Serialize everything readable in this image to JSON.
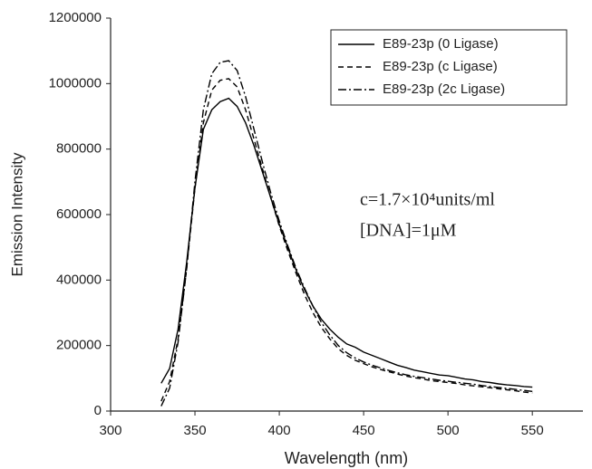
{
  "chart_data": {
    "type": "line",
    "xlabel": "Wavelength (nm)",
    "ylabel": "Emission Intensity",
    "x": [
      330,
      335,
      340,
      345,
      350,
      355,
      360,
      365,
      370,
      375,
      380,
      385,
      390,
      395,
      400,
      405,
      410,
      415,
      420,
      425,
      430,
      435,
      440,
      445,
      450,
      455,
      460,
      465,
      470,
      475,
      480,
      485,
      490,
      495,
      500,
      505,
      510,
      515,
      520,
      525,
      530,
      535,
      540,
      545,
      550
    ],
    "series": [
      {
        "name": "E89-23p (0 Ligase)",
        "color": "#000000",
        "dash": "solid",
        "values": [
          85000,
          130000,
          250000,
          450000,
          680000,
          860000,
          920000,
          945000,
          955000,
          930000,
          880000,
          810000,
          730000,
          650000,
          570000,
          500000,
          430000,
          370000,
          320000,
          280000,
          250000,
          225000,
          205000,
          195000,
          180000,
          170000,
          160000,
          150000,
          140000,
          133000,
          125000,
          120000,
          115000,
          110000,
          108000,
          103000,
          98000,
          95000,
          90000,
          87000,
          83000,
          80000,
          78000,
          75000,
          73000
        ]
      },
      {
        "name": "E89-23p (c Ligase)",
        "color": "#000000",
        "dash": "dashed",
        "values": [
          30000,
          90000,
          220000,
          430000,
          680000,
          880000,
          980000,
          1010000,
          1015000,
          990000,
          920000,
          830000,
          740000,
          650000,
          565000,
          490000,
          420000,
          355000,
          300000,
          255000,
          220000,
          190000,
          170000,
          155000,
          145000,
          135000,
          127000,
          120000,
          113000,
          107000,
          102000,
          98000,
          93000,
          90000,
          87000,
          84000,
          80000,
          77000,
          74000,
          71000,
          68000,
          65000,
          62000,
          58000,
          55000
        ]
      },
      {
        "name": "E89-23p (2c Ligase)",
        "color": "#000000",
        "dash": "dashdot",
        "values": [
          15000,
          70000,
          210000,
          430000,
          700000,
          920000,
          1030000,
          1065000,
          1070000,
          1040000,
          960000,
          860000,
          760000,
          665000,
          580000,
          505000,
          435000,
          375000,
          320000,
          270000,
          232000,
          200000,
          178000,
          162000,
          150000,
          140000,
          132000,
          124000,
          117000,
          111000,
          106000,
          102000,
          98000,
          94000,
          91000,
          88000,
          85000,
          82000,
          78000,
          75000,
          72000,
          69000,
          66000,
          63000,
          60000
        ]
      }
    ],
    "xlim": [
      300,
      580
    ],
    "xticks": [
      300,
      350,
      400,
      450,
      500,
      550
    ],
    "ylim": [
      0,
      1200000
    ],
    "yticks": [
      0,
      200000,
      400000,
      600000,
      800000,
      1000000,
      1200000
    ],
    "grid": false,
    "legend": "top-right",
    "annotations": [
      "c=1.7×10⁴units/ml",
      "[DNA]=1μM"
    ]
  }
}
